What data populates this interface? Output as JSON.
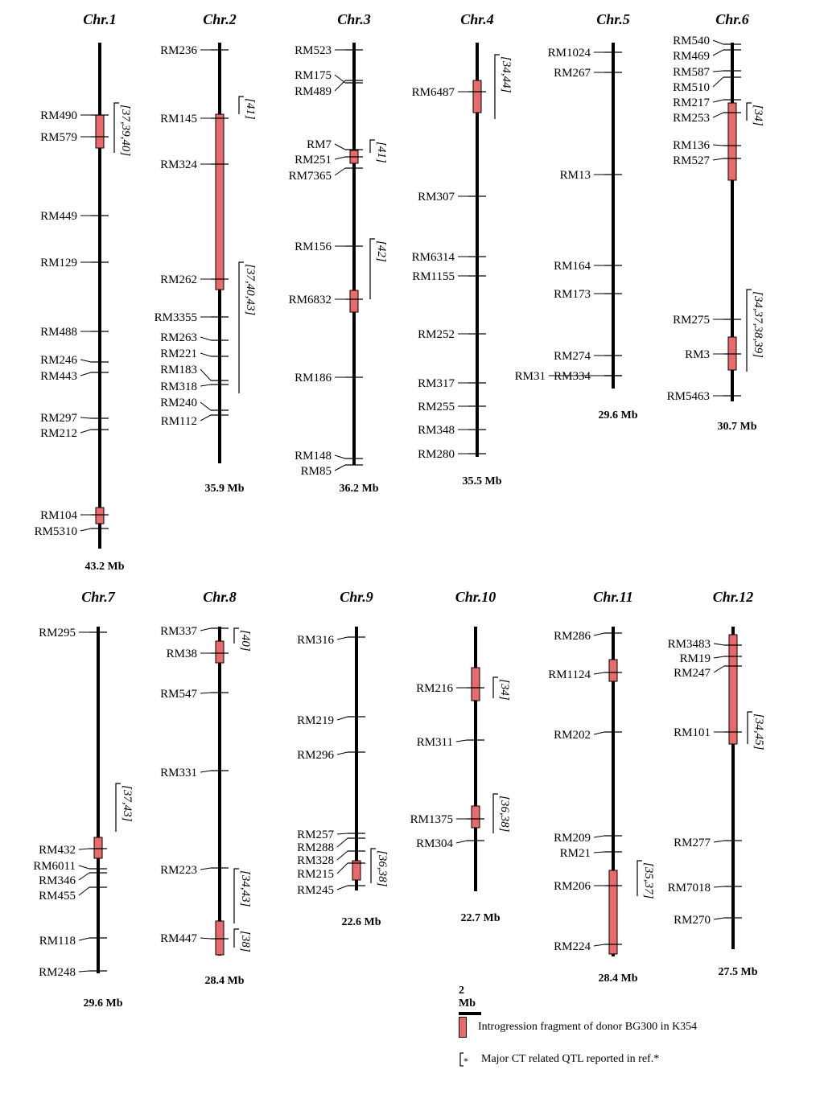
{
  "colors": {
    "fragment_fill": "#e86a6a",
    "line": "#000000"
  },
  "chromosomes": [
    {
      "name": "Chr.1",
      "size": "43.2 Mb",
      "markers": [
        "RM490",
        "RM579",
        "RM449",
        "RM129",
        "RM488",
        "RM246",
        "RM443",
        "RM297",
        "RM212",
        "RM104",
        "RM5310"
      ],
      "qtl": [
        "[37,39,40]"
      ]
    },
    {
      "name": "Chr.2",
      "size": "35.9 Mb",
      "markers": [
        "RM236",
        "RM145",
        "RM324",
        "RM262",
        "RM3355",
        "RM263",
        "RM221",
        "RM183",
        "RM318",
        "RM240",
        "RM112"
      ],
      "qtl": [
        "[41]",
        "[37,40,43]"
      ]
    },
    {
      "name": "Chr.3",
      "size": "36.2 Mb",
      "markers": [
        "RM523",
        "RM175",
        "RM489",
        "RM7",
        "RM251",
        "RM7365",
        "RM156",
        "RM6832",
        "RM186",
        "RM148",
        "RM85"
      ],
      "qtl": [
        "[41]",
        "[42]"
      ]
    },
    {
      "name": "Chr.4",
      "size": "35.5 Mb",
      "markers": [
        "RM6487",
        "RM307",
        "RM6314",
        "RM1155",
        "RM252",
        "RM317",
        "RM255",
        "RM348",
        "RM280"
      ],
      "qtl": [
        "[34,44]"
      ]
    },
    {
      "name": "Chr.5",
      "size": "29.6 Mb",
      "markers": [
        "RM1024",
        "RM267",
        "RM13",
        "RM164",
        "RM173",
        "RM274",
        "RM31",
        "RM334"
      ],
      "qtl": []
    },
    {
      "name": "Chr.6",
      "size": "30.7 Mb",
      "markers": [
        "RM540",
        "RM469",
        "RM587",
        "RM510",
        "RM217",
        "RM253",
        "RM136",
        "RM527",
        "RM275",
        "RM3",
        "RM5463"
      ],
      "qtl": [
        "[34]",
        "[34,37,38,39]"
      ]
    },
    {
      "name": "Chr.7",
      "size": "29.6 Mb",
      "markers": [
        "RM295",
        "RM432",
        "RM6011",
        "RM346",
        "RM455",
        "RM118",
        "RM248"
      ],
      "qtl": [
        "[37,43]"
      ]
    },
    {
      "name": "Chr.8",
      "size": "28.4 Mb",
      "markers": [
        "RM337",
        "RM38",
        "RM547",
        "RM331",
        "RM223",
        "RM447"
      ],
      "qtl": [
        "[40]",
        "[34,43]",
        "[38]"
      ]
    },
    {
      "name": "Chr.9",
      "size": "22.6 Mb",
      "markers": [
        "RM316",
        "RM219",
        "RM296",
        "RM257",
        "RM288",
        "RM328",
        "RM215",
        "RM245"
      ],
      "qtl": [
        "[36,38]"
      ]
    },
    {
      "name": "Chr.10",
      "size": "22.7 Mb",
      "markers": [
        "RM216",
        "RM311",
        "RM1375",
        "RM304"
      ],
      "qtl": [
        "[34]",
        "[36,38]"
      ]
    },
    {
      "name": "Chr.11",
      "size": "28.4 Mb",
      "markers": [
        "RM286",
        "RM1124",
        "RM202",
        "RM209",
        "RM21",
        "RM206",
        "RM224"
      ],
      "qtl": [
        "[35,37]"
      ]
    },
    {
      "name": "Chr.12",
      "size": "27.5 Mb",
      "markers": [
        "RM3483",
        "RM19",
        "RM247",
        "RM101",
        "RM277",
        "RM7018",
        "RM270"
      ],
      "qtl": [
        "[34,45]"
      ]
    }
  ],
  "scale_bar": {
    "label": "2 Mb"
  },
  "legend": {
    "fragment": "Introgression fragment of donor BG300 in K354",
    "qtl": "Major CT related QTL reported in ref.*",
    "qtl_symbol": "*"
  }
}
